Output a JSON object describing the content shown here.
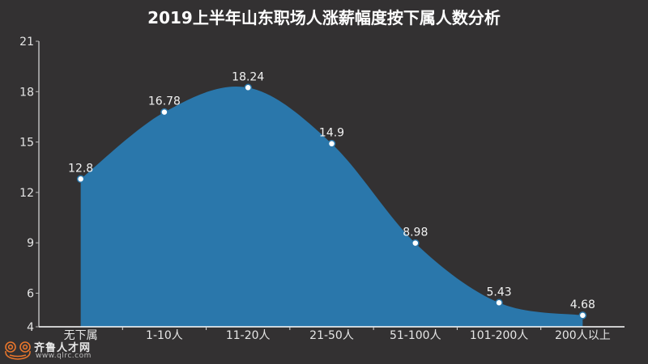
{
  "title": "2019上半年山东职场人涨薪幅度按下属人数分析",
  "watermark": {
    "brand": "齐鲁人才网",
    "url": "www.qlrc.com",
    "icon": "frog-logo-icon",
    "color": "#e8762c"
  },
  "colors": {
    "background": "#333132",
    "area_fill": "#2a77ab",
    "marker_fill": "#ffffff",
    "marker_stroke": "#2a77ab",
    "axis": "#cccccc",
    "text": "#e6e6e6"
  },
  "chart_data": {
    "type": "area",
    "title": "2019上半年山东职场人涨薪幅度按下属人数分析",
    "xlabel": "",
    "ylabel": "",
    "categories": [
      "无下属",
      "1-10人",
      "11-20人",
      "21-50人",
      "51-100人",
      "101-200人",
      "200人以上"
    ],
    "values": [
      12.8,
      16.78,
      18.24,
      14.9,
      8.98,
      5.43,
      4.68
    ],
    "data_labels": [
      "12.8",
      "16.78",
      "18.24",
      "14.9",
      "8.98",
      "5.43",
      "4.68"
    ],
    "ylim": [
      4,
      21
    ],
    "yticks": [
      4,
      6,
      9,
      12,
      15,
      18,
      21
    ],
    "ytick_labels": [
      "4",
      "6",
      "9",
      "12",
      "15",
      "18",
      "21"
    ],
    "smooth": true,
    "grid": false,
    "legend": null
  }
}
